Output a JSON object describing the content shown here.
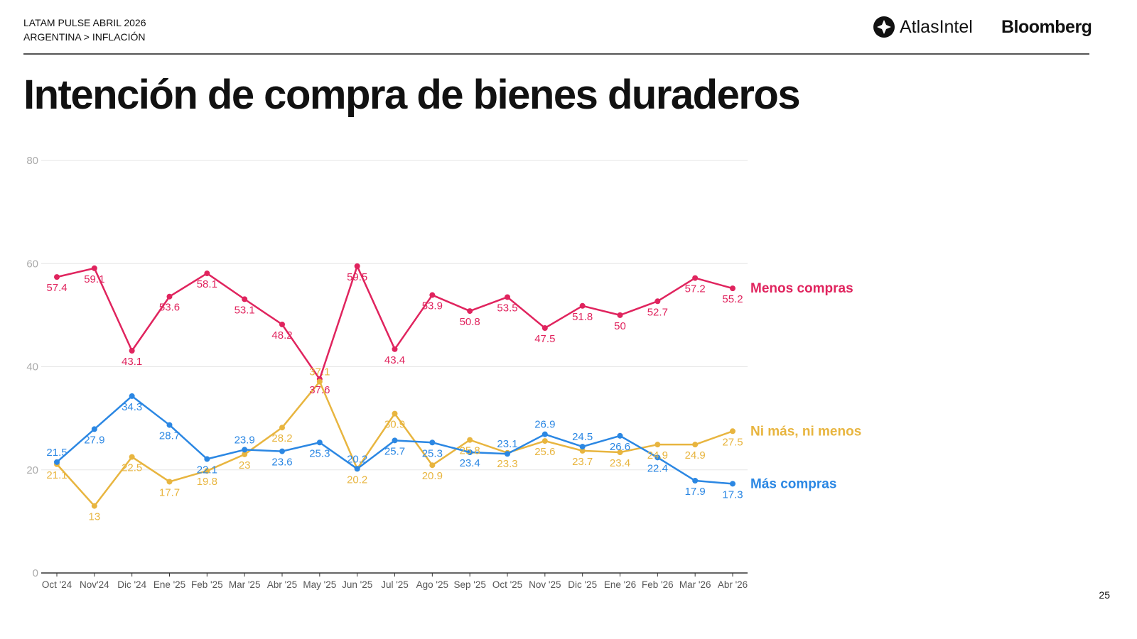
{
  "header": {
    "line1": "LATAM PULSE ABRIL 2026",
    "line2": "ARGENTINA > INFLACIÓN",
    "logo_atlas": "AtlasIntel",
    "logo_bloomberg": "Bloomberg"
  },
  "page_number": "25",
  "chart_data": {
    "type": "line",
    "title": "Intención de compra de bienes duraderos",
    "categories": [
      "Oct '24",
      "Nov'24",
      "Dic '24",
      "Ene '25",
      "Feb '25",
      "Mar '25",
      "Abr '25",
      "May '25",
      "Jun '25",
      "Jul '25",
      "Ago '25",
      "Sep '25",
      "Oct '25",
      "Nov '25",
      "Dic '25",
      "Ene '26",
      "Feb '26",
      "Mar '26",
      "Abr '26"
    ],
    "ylim": [
      0,
      80
    ],
    "yticks": [
      0,
      20,
      40,
      60,
      80
    ],
    "grid": true,
    "legend": "inline-right",
    "series": [
      {
        "name": "Menos compras",
        "color": "#E0245E",
        "values": [
          57.4,
          59.1,
          43.1,
          53.6,
          58.1,
          53.1,
          48.2,
          37.6,
          59.5,
          43.4,
          53.9,
          50.8,
          53.5,
          47.5,
          51.8,
          50,
          52.7,
          57.2,
          55.2
        ]
      },
      {
        "name": "Ni más, ni menos",
        "color": "#E8B53F",
        "values": [
          21.1,
          13,
          22.5,
          17.7,
          19.8,
          23,
          28.2,
          37.1,
          20.2,
          30.9,
          20.9,
          25.8,
          23.3,
          25.6,
          23.7,
          23.4,
          24.9,
          24.9,
          27.5
        ]
      },
      {
        "name": "Más compras",
        "color": "#2B87E3",
        "values": [
          21.5,
          27.9,
          34.3,
          28.7,
          22.1,
          23.9,
          23.6,
          25.3,
          20.2,
          25.7,
          25.3,
          23.4,
          23.1,
          26.9,
          24.5,
          26.6,
          22.4,
          17.9,
          17.3
        ]
      }
    ]
  }
}
